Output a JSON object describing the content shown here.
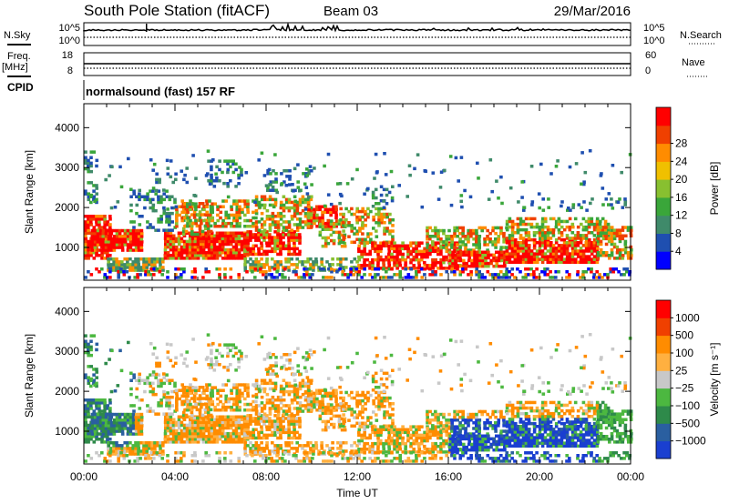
{
  "header": {
    "station": "South Pole Station (fitACF)",
    "beam": "Beam 03",
    "date": "29/Mar/2016"
  },
  "status_panels": {
    "noise": {
      "left_label": "N.Sky",
      "right_label": "N.Search",
      "left_ticks": [
        "10^5",
        "10^0"
      ],
      "right_ticks": [
        "10^5",
        "10^0"
      ]
    },
    "freq": {
      "left_label_top": "Freq.",
      "left_label_bottom": "[MHz]",
      "right_label": "Nave",
      "left_ticks": [
        "18",
        "8"
      ],
      "right_ticks": [
        "60",
        "0"
      ]
    },
    "cpid": {
      "label": "CPID",
      "value": "normalsound (fast) 157 RF"
    }
  },
  "chart_data": [
    {
      "type": "heatmap",
      "name": "power",
      "ylabel": "Slant Range [km]",
      "ylim": [
        180,
        4600
      ],
      "yticks": [
        "1000",
        "2000",
        "3000",
        "4000"
      ],
      "xlim": [
        0,
        24
      ],
      "xticks": [
        "00:00",
        "04:00",
        "08:00",
        "12:00",
        "16:00",
        "20:00",
        "00:00"
      ],
      "colorbar": {
        "label": "Power [dB]",
        "ticks": [
          "4",
          "8",
          "12",
          "16",
          "20",
          "24",
          "28"
        ],
        "range": [
          0,
          32
        ],
        "colors": [
          "#0000ff",
          "#1f4fb0",
          "#3f8a6a",
          "#3aa63a",
          "#88c030",
          "#f0c000",
          "#ff8c00",
          "#f04000",
          "#ff0000"
        ]
      }
    },
    {
      "type": "heatmap",
      "name": "velocity",
      "ylabel": "Slant Range [km]",
      "ylim": [
        180,
        4600
      ],
      "yticks": [
        "1000",
        "2000",
        "3000",
        "4000"
      ],
      "xlim": [
        0,
        24
      ],
      "xticks": [
        "00:00",
        "04:00",
        "08:00",
        "12:00",
        "16:00",
        "20:00",
        "00:00"
      ],
      "xlabel": "Time UT",
      "colorbar": {
        "label": "Velocity [m s⁻¹]",
        "ticks": [
          "1000",
          "500",
          "100",
          "25",
          "−25",
          "−100",
          "−500",
          "−1000"
        ],
        "colors": [
          "#1a3fd0",
          "#2a5fa0",
          "#2e8a4a",
          "#4cb840",
          "#c8c8c8",
          "#ffb040",
          "#ff8c00",
          "#f04000",
          "#ff0000"
        ]
      }
    }
  ]
}
